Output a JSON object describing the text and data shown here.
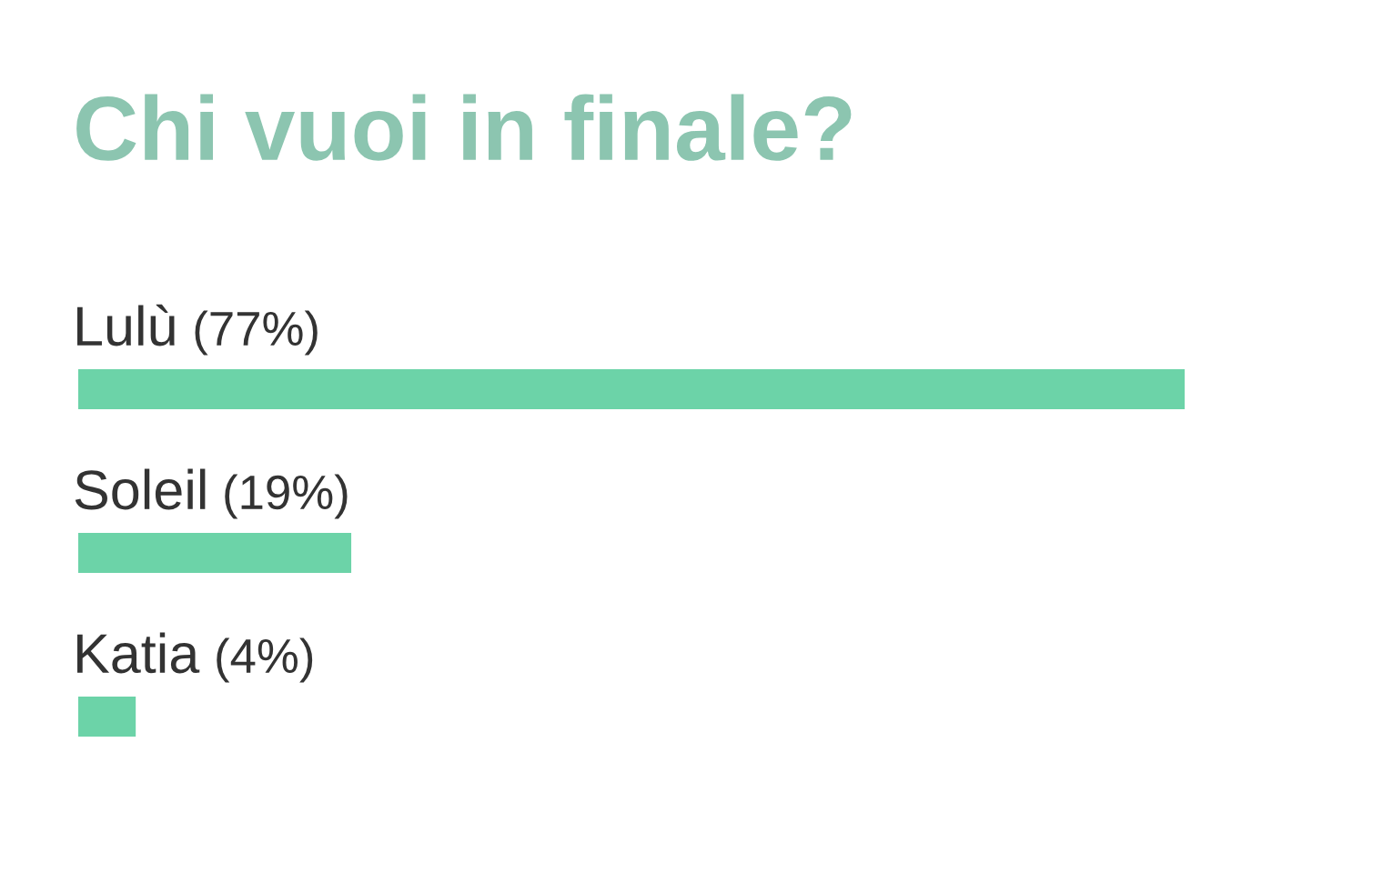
{
  "chart_data": {
    "type": "bar",
    "orientation": "horizontal",
    "title": "Chi vuoi in finale?",
    "categories": [
      "Lulù",
      "Soleil",
      "Katia"
    ],
    "values": [
      77,
      19,
      4
    ],
    "value_labels": [
      "(77%)",
      "(19%)",
      "(4%)"
    ],
    "color": "#6cd3a8"
  }
}
